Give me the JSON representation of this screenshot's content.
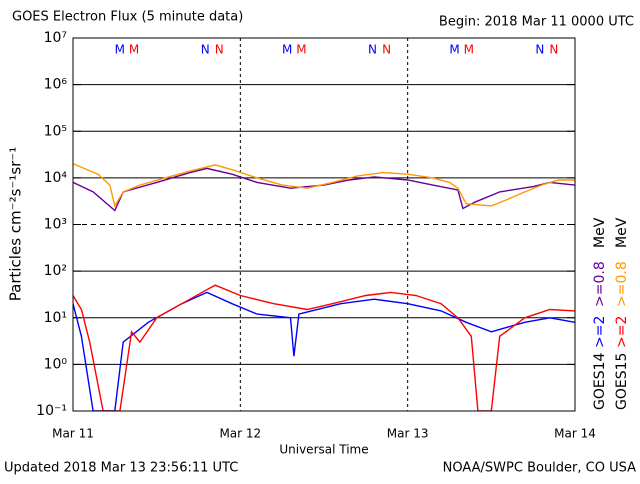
{
  "chart_data": {
    "type": "line",
    "title": "GOES Electron Flux (5 minute data)",
    "subtitle": "Begin: 2018 Mar 11 0000 UTC",
    "x_label": "Universal Time",
    "y_label": "Particles cm⁻²s⁻¹sr⁻¹",
    "footer_left": "Updated 2018 Mar 13 23:56:11 UTC",
    "footer_right": "NOAA/SWPC Boulder, CO USA",
    "y_log": true,
    "xlim": [
      0,
      3
    ],
    "xticks": [
      {
        "value": 0,
        "label": "Mar 11"
      },
      {
        "value": 1,
        "label": "Mar 12"
      },
      {
        "value": 2,
        "label": "Mar 13"
      },
      {
        "value": 3,
        "label": "Mar 14"
      }
    ],
    "ylim": [
      0.1,
      10000000
    ],
    "yticks": [
      {
        "value": 0.1,
        "label": "10⁻¹"
      },
      {
        "value": 1,
        "label": "10⁰"
      },
      {
        "value": 10,
        "label": "10¹"
      },
      {
        "value": 100,
        "label": "10²"
      },
      {
        "value": 1000,
        "label": "10³"
      },
      {
        "value": 10000,
        "label": "10⁴"
      },
      {
        "value": 100000,
        "label": "10⁵"
      },
      {
        "value": 1000000,
        "label": "10⁶"
      },
      {
        "value": 10000000,
        "label": "10⁷"
      }
    ],
    "threshold": 1000,
    "legend": [
      {
        "satellite": "GOES14",
        "unit": "MeV"
      },
      {
        "satellite": "GOES15",
        "unit": "MeV"
      }
    ],
    "markers": [
      {
        "label": "M",
        "color": "#0000ff",
        "x": 0.28
      },
      {
        "label": "M",
        "color": "#ff0000",
        "x": 0.365
      },
      {
        "label": "N",
        "color": "#0000ff",
        "x": 0.79
      },
      {
        "label": "N",
        "color": "#ff0000",
        "x": 0.874
      },
      {
        "label": "M",
        "color": "#0000ff",
        "x": 1.28
      },
      {
        "label": "M",
        "color": "#ff0000",
        "x": 1.365
      },
      {
        "label": "N",
        "color": "#0000ff",
        "x": 1.79
      },
      {
        "label": "N",
        "color": "#ff0000",
        "x": 1.874
      },
      {
        "label": "M",
        "color": "#0000ff",
        "x": 2.28
      },
      {
        "label": "M",
        "color": "#ff0000",
        "x": 2.365
      },
      {
        "label": "N",
        "color": "#0000ff",
        "x": 2.79
      },
      {
        "label": "N",
        "color": "#ff0000",
        "x": 2.874
      }
    ],
    "series": [
      {
        "name": ">=2",
        "legend": 0,
        "color": "#0000ff",
        "x": [
          0,
          0.05,
          0.12,
          0.25,
          0.3,
          0.45,
          0.65,
          0.8,
          0.95,
          1.1,
          1.3,
          1.32,
          1.35,
          1.6,
          1.8,
          2.0,
          2.2,
          2.35,
          2.5,
          2.7,
          2.85,
          3.0
        ],
        "values": [
          20,
          4,
          0.1,
          0.1,
          3,
          8,
          20,
          35,
          20,
          12,
          10,
          1.5,
          12,
          20,
          25,
          20,
          14,
          8,
          5,
          8,
          10,
          8
        ]
      },
      {
        "name": ">=0.8",
        "legend": 0,
        "color": "#660099",
        "x": [
          0,
          0.12,
          0.25,
          0.3,
          0.5,
          0.7,
          0.8,
          0.95,
          1.1,
          1.3,
          1.5,
          1.65,
          1.8,
          2.0,
          2.15,
          2.3,
          2.33,
          2.4,
          2.55,
          2.75,
          2.85,
          3.0
        ],
        "values": [
          8000,
          5000,
          2000,
          5000,
          8000,
          13000,
          16000,
          12000,
          8000,
          6000,
          7000,
          9000,
          10500,
          9000,
          7000,
          5500,
          2200,
          3000,
          5000,
          6500,
          8000,
          7000
        ]
      },
      {
        "name": ">=2",
        "legend": 1,
        "color": "#ff0000",
        "x": [
          0,
          0.05,
          0.1,
          0.18,
          0.28,
          0.35,
          0.4,
          0.5,
          0.65,
          0.8,
          0.85,
          1.0,
          1.2,
          1.4,
          1.55,
          1.75,
          1.9,
          2.05,
          2.2,
          2.3,
          2.38,
          2.42,
          2.5,
          2.55,
          2.7,
          2.85,
          3.0
        ],
        "values": [
          30,
          15,
          3,
          0.1,
          0.1,
          5,
          3,
          10,
          20,
          40,
          50,
          30,
          20,
          15,
          20,
          30,
          35,
          30,
          20,
          10,
          4,
          0.1,
          0.1,
          4,
          10,
          15,
          14
        ]
      },
      {
        "name": ">=0.8",
        "legend": 1,
        "color": "#ff9900",
        "x": [
          0,
          0.15,
          0.22,
          0.25,
          0.3,
          0.4,
          0.55,
          0.7,
          0.85,
          0.95,
          1.1,
          1.25,
          1.4,
          1.55,
          1.7,
          1.85,
          2.0,
          2.15,
          2.25,
          2.3,
          2.35,
          2.5,
          2.6,
          2.7,
          2.8,
          2.9,
          3.0
        ],
        "values": [
          20000,
          12000,
          7000,
          2500,
          5000,
          7000,
          10000,
          14000,
          19000,
          15000,
          10000,
          7000,
          6000,
          8000,
          11000,
          13000,
          12000,
          10000,
          8000,
          6000,
          2800,
          2500,
          3500,
          5000,
          7000,
          9000,
          9000
        ]
      }
    ]
  }
}
